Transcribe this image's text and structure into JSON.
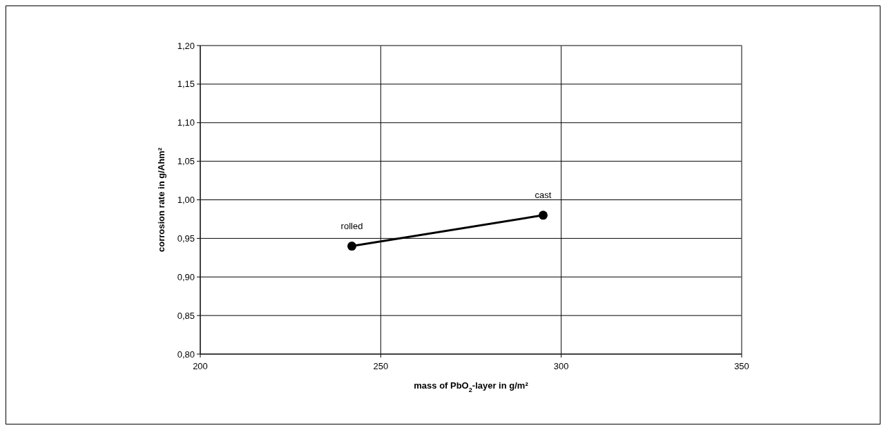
{
  "chart_data": {
    "type": "line",
    "xlabel": "mass of PbO$_{2}$-layer in g/m²",
    "ylabel": "corrosion rate in g/Ahm²",
    "xlim": [
      200,
      350
    ],
    "xticks": [
      200,
      250,
      300,
      350
    ],
    "ylim": [
      0.8,
      1.2
    ],
    "yticks": [
      {
        "value": 0.8,
        "label": "0,80"
      },
      {
        "value": 0.85,
        "label": "0,85"
      },
      {
        "value": 0.9,
        "label": "0,90"
      },
      {
        "value": 0.95,
        "label": "0,95"
      },
      {
        "value": 1.0,
        "label": "1,00"
      },
      {
        "value": 1.05,
        "label": "1,05"
      },
      {
        "value": 1.1,
        "label": "1,10"
      },
      {
        "value": 1.15,
        "label": "1,15"
      },
      {
        "value": 1.2,
        "label": "1,20"
      }
    ],
    "grid": true,
    "marker": "circle",
    "line_style": "solid",
    "series": [
      {
        "color": "#000000",
        "x": [
          242,
          295
        ],
        "values": [
          0.94,
          0.98
        ]
      }
    ],
    "annotations": [
      {
        "text": "rolled",
        "x": 242,
        "y": 0.94
      },
      {
        "text": "cast",
        "x": 295,
        "y": 0.98
      }
    ]
  }
}
